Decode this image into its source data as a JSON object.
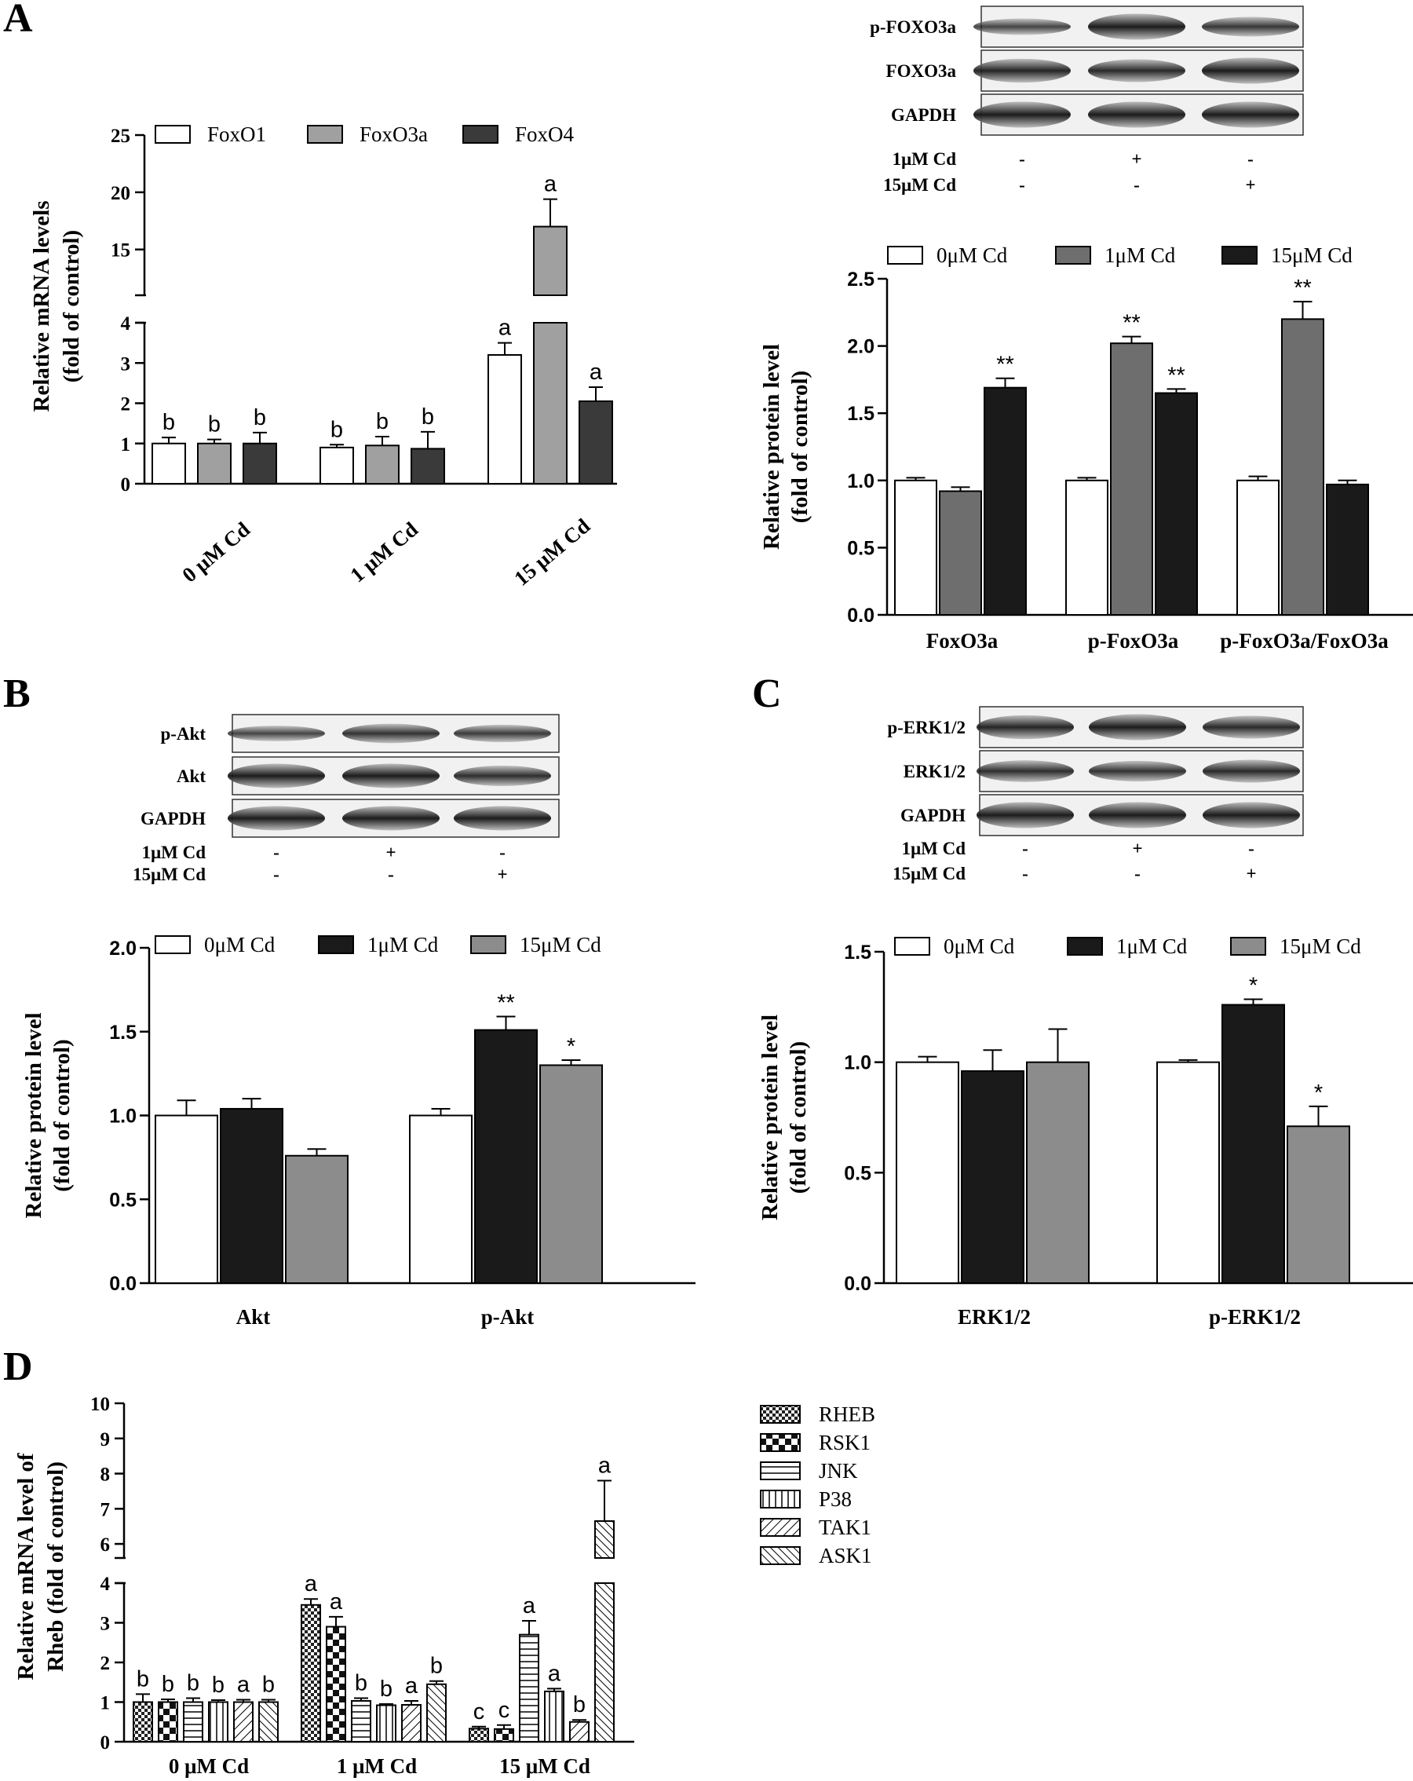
{
  "panels": {
    "A": "A",
    "B": "B",
    "C": "C",
    "D": "D"
  },
  "colors": {
    "white": "#ffffff",
    "light_gray": "#a0a0a0",
    "mid_gray": "#6e6e6e",
    "dark": "#3a3a3a",
    "black": "#1a1a1a",
    "gray15": "#8c8c8c"
  },
  "blots": {
    "A": {
      "lanes": [
        "p-FOXO3a",
        "FOXO3a",
        "GAPDH"
      ],
      "treat_rows": [
        {
          "label": "1μM Cd",
          "signs": [
            "-",
            "+",
            "-"
          ]
        },
        {
          "label": "15μM Cd",
          "signs": [
            "-",
            "-",
            "+"
          ]
        }
      ]
    },
    "B": {
      "lanes": [
        "p-Akt",
        "Akt",
        "GAPDH"
      ],
      "treat_rows": [
        {
          "label": "1μM Cd",
          "signs": [
            "-",
            "+",
            "-"
          ]
        },
        {
          "label": "15μM Cd",
          "signs": [
            "-",
            "-",
            "+"
          ]
        }
      ]
    },
    "C": {
      "lanes": [
        "p-ERK1/2",
        "ERK1/2",
        "GAPDH"
      ],
      "treat_rows": [
        {
          "label": "1μM Cd",
          "signs": [
            "-",
            "+",
            "-"
          ]
        },
        {
          "label": "15μM Cd",
          "signs": [
            "-",
            "-",
            "+"
          ]
        }
      ]
    }
  },
  "chart_data": [
    {
      "id": "A-mrna",
      "type": "bar",
      "ylabel_lines": [
        "Relative  mRNA levels",
        "(fold of control)"
      ],
      "categories": [
        "0 μM Cd",
        "1 μM Cd",
        "15 μM Cd"
      ],
      "broken_axis": true,
      "lower_ticks": [
        "0",
        "1",
        "2",
        "3",
        "4"
      ],
      "upper_ticks": [
        "15",
        "20",
        "25"
      ],
      "legend": [
        "FoxO1",
        "FoxO3a",
        "FoxO4"
      ],
      "series": [
        {
          "name": "FoxO1",
          "values": [
            1.0,
            0.9,
            3.2
          ],
          "errors": [
            0.15,
            0.07,
            0.3
          ],
          "letters": [
            "b",
            "b",
            "a"
          ]
        },
        {
          "name": "FoxO3a",
          "values": [
            1.0,
            0.95,
            17.0
          ],
          "errors": [
            0.1,
            0.22,
            2.4
          ],
          "letters": [
            "b",
            "b",
            "a"
          ]
        },
        {
          "name": "FoxO4",
          "values": [
            1.0,
            0.87,
            2.05
          ],
          "errors": [
            0.27,
            0.42,
            0.35
          ],
          "letters": [
            "b",
            "b",
            "a"
          ]
        }
      ]
    },
    {
      "id": "A-protein",
      "type": "bar",
      "ylabel_lines": [
        "Relative protein level",
        "(fold of control)"
      ],
      "categories": [
        "FoxO3a",
        "p-FoxO3a",
        "p-FoxO3a/FoxO3a"
      ],
      "ylim": [
        0,
        2.5
      ],
      "ticks": [
        "0.0",
        "0.5",
        "1.0",
        "1.5",
        "2.0",
        "2.5"
      ],
      "legend": [
        "0μM Cd",
        "1μM Cd",
        "15μM Cd"
      ],
      "series": [
        {
          "name": "0μM Cd",
          "values": [
            1.0,
            1.0,
            1.0
          ],
          "errors": [
            0.02,
            0.02,
            0.03
          ],
          "marks": [
            "",
            "",
            ""
          ]
        },
        {
          "name": "1μM Cd",
          "values": [
            0.92,
            2.02,
            2.2
          ],
          "errors": [
            0.03,
            0.05,
            0.13
          ],
          "marks": [
            "",
            "**",
            "**"
          ]
        },
        {
          "name": "15μM Cd",
          "values": [
            1.69,
            1.65,
            0.97
          ],
          "errors": [
            0.07,
            0.03,
            0.03
          ],
          "marks": [
            "**",
            "**",
            ""
          ]
        }
      ]
    },
    {
      "id": "B-protein",
      "type": "bar",
      "ylabel_lines": [
        "Relative protein level",
        "(fold of control)"
      ],
      "categories": [
        "Akt",
        "p-Akt"
      ],
      "ylim": [
        0,
        2.0
      ],
      "ticks": [
        "0.0",
        "0.5",
        "1.0",
        "1.5",
        "2.0"
      ],
      "legend": [
        "0μM Cd",
        "1μM Cd",
        "15μM Cd"
      ],
      "series": [
        {
          "name": "0μM Cd",
          "values": [
            1.0,
            1.0
          ],
          "errors": [
            0.09,
            0.04
          ],
          "marks": [
            "",
            ""
          ]
        },
        {
          "name": "1μM Cd",
          "values": [
            1.04,
            1.51
          ],
          "errors": [
            0.06,
            0.08
          ],
          "marks": [
            "",
            "**"
          ]
        },
        {
          "name": "15μM Cd",
          "values": [
            0.76,
            1.3
          ],
          "errors": [
            0.04,
            0.03
          ],
          "marks": [
            "",
            "*"
          ]
        }
      ]
    },
    {
      "id": "C-protein",
      "type": "bar",
      "ylabel_lines": [
        "Relative protein level",
        "(fold of control)"
      ],
      "categories": [
        "ERK1/2",
        "p-ERK1/2"
      ],
      "ylim": [
        0,
        1.5
      ],
      "ticks": [
        "0.0",
        "0.5",
        "1.0",
        "1.5"
      ],
      "legend": [
        "0μM Cd",
        "1μM Cd",
        "15μM Cd"
      ],
      "series": [
        {
          "name": "0μM Cd",
          "values": [
            1.0,
            1.0
          ],
          "errors": [
            0.025,
            0.01
          ],
          "marks": [
            "",
            ""
          ]
        },
        {
          "name": "1μM Cd",
          "values": [
            0.96,
            1.26
          ],
          "errors": [
            0.095,
            0.025
          ],
          "marks": [
            "",
            "*"
          ]
        },
        {
          "name": "15μM Cd",
          "values": [
            1.0,
            0.71
          ],
          "errors": [
            0.15,
            0.09
          ],
          "marks": [
            "",
            "*"
          ]
        }
      ]
    },
    {
      "id": "D-mrna",
      "type": "bar",
      "ylabel_lines": [
        "Relative mRNA level of",
        "Rheb (fold of control)"
      ],
      "categories": [
        "0 μM Cd",
        "1 μM Cd",
        "15 μM Cd"
      ],
      "broken_axis": true,
      "lower_ticks": [
        "0",
        "1",
        "2",
        "3",
        "4"
      ],
      "upper_ticks": [
        "6",
        "7",
        "8",
        "9",
        "10"
      ],
      "legend": [
        "RHEB",
        "RSK1",
        "JNK",
        "P38",
        "TAK1",
        "ASK1"
      ],
      "series": [
        {
          "name": "RHEB",
          "values": [
            1.0,
            3.45,
            0.33
          ],
          "errors": [
            0.2,
            0.15,
            0.05
          ],
          "letters": [
            "b",
            "a",
            "c"
          ]
        },
        {
          "name": "RSK1",
          "values": [
            1.0,
            2.9,
            0.32
          ],
          "errors": [
            0.07,
            0.25,
            0.1
          ],
          "letters": [
            "b",
            "a",
            "c"
          ]
        },
        {
          "name": "JNK",
          "values": [
            1.0,
            1.03,
            2.7
          ],
          "errors": [
            0.1,
            0.07,
            0.35
          ],
          "letters": [
            "b",
            "b",
            "a"
          ]
        },
        {
          "name": "P38",
          "values": [
            1.0,
            0.92,
            1.27
          ],
          "errors": [
            0.05,
            0.03,
            0.07
          ],
          "letters": [
            "b",
            "b",
            "a"
          ]
        },
        {
          "name": "TAK1",
          "values": [
            1.0,
            0.93,
            0.5
          ],
          "errors": [
            0.06,
            0.1,
            0.05
          ],
          "letters": [
            "a",
            "a",
            "b"
          ]
        },
        {
          "name": "ASK1",
          "values": [
            1.0,
            1.45,
            6.65
          ],
          "errors": [
            0.06,
            0.08,
            1.15
          ],
          "letters": [
            "b",
            "b",
            "a"
          ]
        }
      ]
    }
  ]
}
